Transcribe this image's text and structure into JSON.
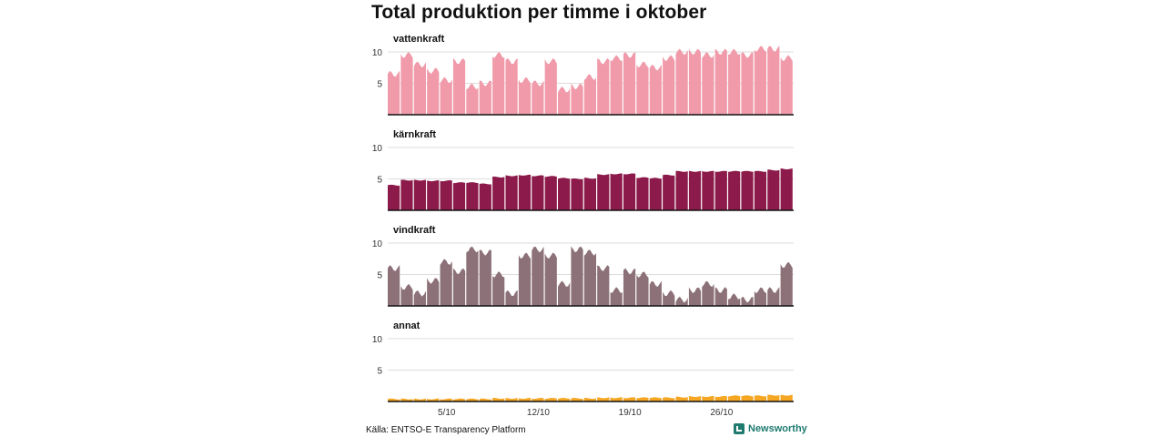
{
  "title": "Total produktion per timme i oktober",
  "source": "Källa: ENTSO-E Transparency Platform",
  "brand": {
    "name": "Newsworthy",
    "icon": "newsworthy-logo-icon",
    "color": "#1f7a70"
  },
  "chart_data": [
    {
      "type": "area",
      "title": "vattenkraft",
      "color": "#f09aaa",
      "ylim": [
        0,
        11
      ],
      "yticks": [
        5,
        10
      ],
      "x_ticks": [
        "5/10",
        "12/10",
        "19/10",
        "26/10"
      ],
      "x": [
        "1/10",
        "2/10",
        "3/10",
        "4/10",
        "5/10",
        "6/10",
        "7/10",
        "8/10",
        "9/10",
        "10/10",
        "11/10",
        "12/10",
        "13/10",
        "14/10",
        "15/10",
        "16/10",
        "17/10",
        "18/10",
        "19/10",
        "20/10",
        "21/10",
        "22/10",
        "23/10",
        "24/10",
        "25/10",
        "26/10",
        "27/10",
        "28/10",
        "29/10",
        "30/10",
        "31/10"
      ],
      "values": [
        6.5,
        9.5,
        8.0,
        7.0,
        5.5,
        8.5,
        4.5,
        5.0,
        9.5,
        8.5,
        5.5,
        5.0,
        8.5,
        4.0,
        4.5,
        6.0,
        8.5,
        9.0,
        9.5,
        8.0,
        7.5,
        9.0,
        10.0,
        10.0,
        9.5,
        10.0,
        10.0,
        9.5,
        10.5,
        10.5,
        9.0
      ],
      "series_name": ""
    },
    {
      "type": "area",
      "title": "kärnkraft",
      "color": "#8c1a4a",
      "ylim": [
        0,
        11
      ],
      "yticks": [
        5,
        10
      ],
      "x_ticks": [
        "5/10",
        "12/10",
        "19/10",
        "26/10"
      ],
      "x": [
        "1/10",
        "2/10",
        "3/10",
        "4/10",
        "5/10",
        "6/10",
        "7/10",
        "8/10",
        "9/10",
        "10/10",
        "11/10",
        "12/10",
        "13/10",
        "14/10",
        "15/10",
        "16/10",
        "17/10",
        "18/10",
        "19/10",
        "20/10",
        "21/10",
        "22/10",
        "23/10",
        "24/10",
        "25/10",
        "26/10",
        "27/10",
        "28/10",
        "29/10",
        "30/10",
        "31/10"
      ],
      "values": [
        4.0,
        4.8,
        4.8,
        4.7,
        4.7,
        4.4,
        4.4,
        4.2,
        5.3,
        5.5,
        5.6,
        5.5,
        5.4,
        5.1,
        5.0,
        5.1,
        5.7,
        5.8,
        5.8,
        5.2,
        5.1,
        5.6,
        6.2,
        6.2,
        6.2,
        6.2,
        6.2,
        6.2,
        6.2,
        6.4,
        6.6
      ]
    },
    {
      "type": "area",
      "title": "vindkraft",
      "color": "#8c7178",
      "ylim": [
        0,
        11
      ],
      "yticks": [
        5,
        10
      ],
      "x_ticks": [
        "5/10",
        "12/10",
        "19/10",
        "26/10"
      ],
      "x": [
        "1/10",
        "2/10",
        "3/10",
        "4/10",
        "5/10",
        "6/10",
        "7/10",
        "8/10",
        "9/10",
        "10/10",
        "11/10",
        "12/10",
        "13/10",
        "14/10",
        "15/10",
        "16/10",
        "17/10",
        "18/10",
        "19/10",
        "20/10",
        "21/10",
        "22/10",
        "23/10",
        "24/10",
        "25/10",
        "26/10",
        "27/10",
        "28/10",
        "29/10",
        "30/10",
        "31/10"
      ],
      "values": [
        6.0,
        3.0,
        2.0,
        4.0,
        7.0,
        5.5,
        9.0,
        8.5,
        5.0,
        2.0,
        8.0,
        9.0,
        8.0,
        3.5,
        9.0,
        8.5,
        6.0,
        2.5,
        5.5,
        5.0,
        3.5,
        2.0,
        1.0,
        2.5,
        3.5,
        2.5,
        1.5,
        1.0,
        2.5,
        2.5,
        6.5
      ]
    },
    {
      "type": "area",
      "title": "annat",
      "color": "#f5a623",
      "ylim": [
        0,
        11
      ],
      "yticks": [
        5,
        10
      ],
      "x_ticks": [
        "5/10",
        "12/10",
        "19/10",
        "26/10"
      ],
      "x": [
        "1/10",
        "2/10",
        "3/10",
        "4/10",
        "5/10",
        "6/10",
        "7/10",
        "8/10",
        "9/10",
        "10/10",
        "11/10",
        "12/10",
        "13/10",
        "14/10",
        "15/10",
        "16/10",
        "17/10",
        "18/10",
        "19/10",
        "20/10",
        "21/10",
        "22/10",
        "23/10",
        "24/10",
        "25/10",
        "26/10",
        "27/10",
        "28/10",
        "29/10",
        "30/10",
        "31/10"
      ],
      "values": [
        0.4,
        0.4,
        0.4,
        0.4,
        0.4,
        0.4,
        0.4,
        0.4,
        0.5,
        0.5,
        0.5,
        0.5,
        0.5,
        0.5,
        0.5,
        0.5,
        0.6,
        0.6,
        0.6,
        0.6,
        0.6,
        0.6,
        0.7,
        0.8,
        0.8,
        0.8,
        0.9,
        0.9,
        0.9,
        1.0,
        1.0
      ]
    }
  ]
}
